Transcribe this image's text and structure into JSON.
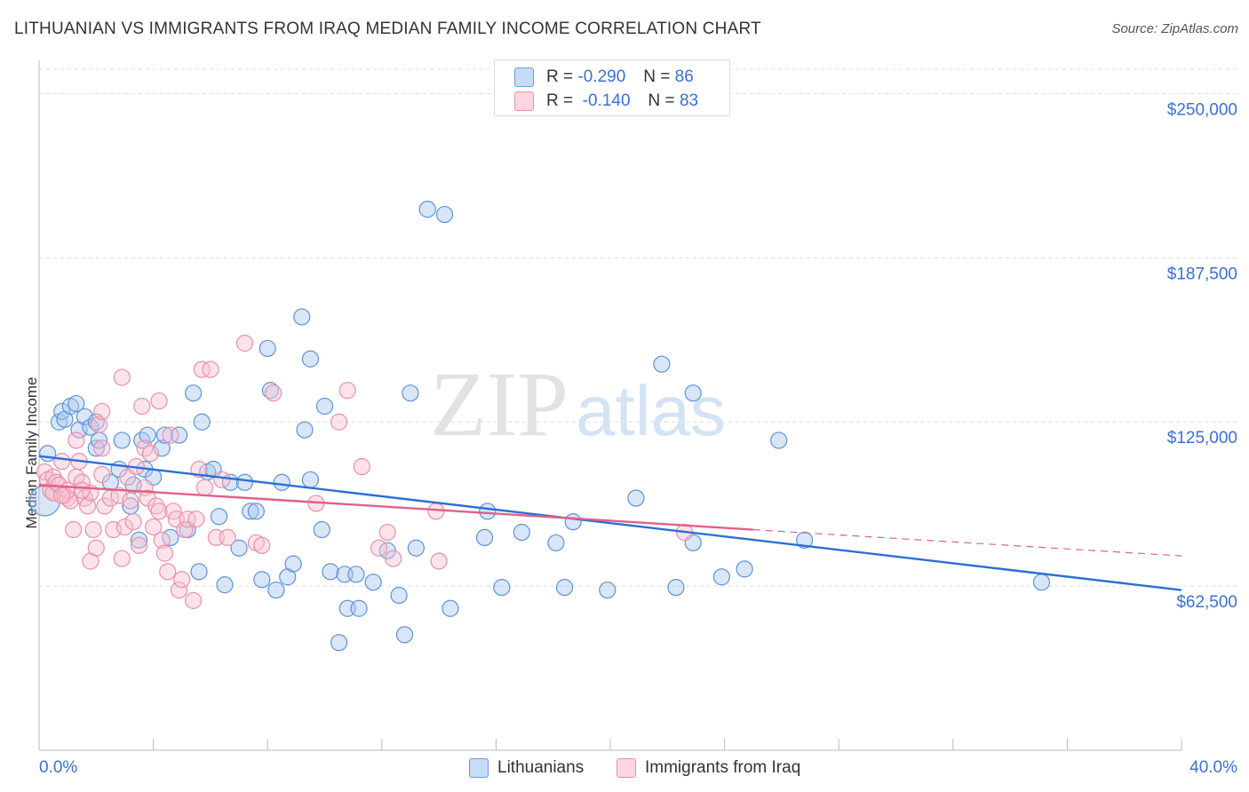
{
  "title": "LITHUANIAN VS IMMIGRANTS FROM IRAQ MEDIAN FAMILY INCOME CORRELATION CHART",
  "source": "Source: ZipAtlas.com",
  "watermark": {
    "zip": "ZIP",
    "atlas": "atlas"
  },
  "stats_legend": [
    {
      "r_label": "R =",
      "r_value": "-0.290",
      "n_label": "N =",
      "n_value": "86",
      "color": "#a8c8f0",
      "border": "#6a9ee0"
    },
    {
      "r_label": "R =",
      "r_value": "-0.140",
      "n_label": "N =",
      "n_value": "83",
      "color": "#f8c0d0",
      "border": "#e890aa"
    }
  ],
  "chart_data": {
    "type": "scatter",
    "title": "LITHUANIAN VS IMMIGRANTS FROM IRAQ MEDIAN FAMILY INCOME CORRELATION CHART",
    "xlabel": "",
    "ylabel": "Median Family Income",
    "xlim": [
      0,
      40
    ],
    "ylim": [
      0,
      262000
    ],
    "x_tick_labels": [
      "0.0%",
      "40.0%"
    ],
    "y_ticks": [
      62500,
      125000,
      187500,
      250000
    ],
    "y_tick_labels": [
      "$62,500",
      "$125,000",
      "$187,500",
      "$250,000"
    ],
    "grid": true,
    "legend_position": "bottom",
    "series": [
      {
        "name": "Lithuanians",
        "color": "#a8c8f0",
        "edge": "#5d92dc",
        "line_color": "#2b6fd6",
        "trend": {
          "x": [
            0,
            40
          ],
          "y": [
            112000,
            61000
          ]
        },
        "points": [
          [
            0.3,
            113000
          ],
          [
            0.7,
            125000
          ],
          [
            0.8,
            129000
          ],
          [
            0.9,
            126000
          ],
          [
            1.1,
            131000
          ],
          [
            1.3,
            132000
          ],
          [
            1.4,
            122000
          ],
          [
            1.6,
            127000
          ],
          [
            1.8,
            123000
          ],
          [
            2.0,
            125000
          ],
          [
            2.0,
            115000
          ],
          [
            2.1,
            118000
          ],
          [
            2.5,
            102000
          ],
          [
            2.8,
            107000
          ],
          [
            2.9,
            118000
          ],
          [
            3.2,
            93000
          ],
          [
            3.3,
            101000
          ],
          [
            3.5,
            80000
          ],
          [
            3.6,
            118000
          ],
          [
            3.7,
            107000
          ],
          [
            3.8,
            120000
          ],
          [
            4.0,
            104000
          ],
          [
            4.3,
            115000
          ],
          [
            4.4,
            120000
          ],
          [
            4.9,
            120000
          ],
          [
            4.6,
            81000
          ],
          [
            5.2,
            84000
          ],
          [
            5.4,
            136000
          ],
          [
            5.6,
            68000
          ],
          [
            5.7,
            125000
          ],
          [
            5.9,
            106000
          ],
          [
            6.1,
            107000
          ],
          [
            6.3,
            89000
          ],
          [
            6.5,
            63000
          ],
          [
            6.7,
            102000
          ],
          [
            7.0,
            77000
          ],
          [
            7.2,
            102000
          ],
          [
            7.4,
            91000
          ],
          [
            7.6,
            91000
          ],
          [
            7.8,
            65000
          ],
          [
            8.0,
            153000
          ],
          [
            8.1,
            137000
          ],
          [
            8.3,
            61000
          ],
          [
            8.5,
            102000
          ],
          [
            8.7,
            66000
          ],
          [
            8.9,
            71000
          ],
          [
            9.2,
            165000
          ],
          [
            9.3,
            122000
          ],
          [
            9.5,
            149000
          ],
          [
            9.5,
            103000
          ],
          [
            9.9,
            84000
          ],
          [
            10.0,
            131000
          ],
          [
            10.2,
            68000
          ],
          [
            10.5,
            41000
          ],
          [
            10.7,
            67000
          ],
          [
            10.8,
            54000
          ],
          [
            11.1,
            67000
          ],
          [
            11.2,
            54000
          ],
          [
            11.7,
            64000
          ],
          [
            12.2,
            76000
          ],
          [
            12.6,
            59000
          ],
          [
            12.8,
            44000
          ],
          [
            13.0,
            136000
          ],
          [
            13.2,
            77000
          ],
          [
            13.6,
            206000
          ],
          [
            14.2,
            204000
          ],
          [
            14.4,
            54000
          ],
          [
            15.7,
            91000
          ],
          [
            15.6,
            81000
          ],
          [
            16.2,
            62000
          ],
          [
            16.9,
            83000
          ],
          [
            18.1,
            79000
          ],
          [
            18.4,
            62000
          ],
          [
            18.7,
            87000
          ],
          [
            19.9,
            61000
          ],
          [
            20.9,
            96000
          ],
          [
            21.8,
            147000
          ],
          [
            22.3,
            62000
          ],
          [
            22.9,
            136000
          ],
          [
            22.9,
            79000
          ],
          [
            23.9,
            66000
          ],
          [
            24.7,
            69000
          ],
          [
            25.9,
            118000
          ],
          [
            26.8,
            80000
          ],
          [
            35.1,
            64000
          ],
          [
            0.2,
            95000
          ]
        ],
        "radii_note": "leftmost point at x=0.2 drawn larger"
      },
      {
        "name": "Immigrants from Iraq",
        "color": "#f8c0d0",
        "edge": "#e890aa",
        "line_color": "#e0608a",
        "trend": {
          "x": [
            0,
            25
          ],
          "y": [
            101000,
            84000
          ]
        },
        "trend_dashed": {
          "x": [
            25,
            40
          ],
          "y": [
            84000,
            74000
          ]
        },
        "points": [
          [
            0.2,
            106000
          ],
          [
            0.3,
            103000
          ],
          [
            0.4,
            99000
          ],
          [
            0.5,
            104000
          ],
          [
            0.5,
            98000
          ],
          [
            0.6,
            102000
          ],
          [
            0.7,
            101000
          ],
          [
            0.8,
            110000
          ],
          [
            0.9,
            97000
          ],
          [
            1.0,
            96000
          ],
          [
            1.1,
            95000
          ],
          [
            1.2,
            84000
          ],
          [
            1.3,
            104000
          ],
          [
            1.3,
            118000
          ],
          [
            1.4,
            110000
          ],
          [
            1.5,
            102000
          ],
          [
            1.6,
            96000
          ],
          [
            1.7,
            93000
          ],
          [
            1.8,
            72000
          ],
          [
            1.8,
            98000
          ],
          [
            1.9,
            84000
          ],
          [
            2.0,
            77000
          ],
          [
            2.1,
            124000
          ],
          [
            2.2,
            129000
          ],
          [
            2.2,
            115000
          ],
          [
            2.2,
            105000
          ],
          [
            2.3,
            93000
          ],
          [
            2.5,
            96000
          ],
          [
            2.6,
            84000
          ],
          [
            2.8,
            97000
          ],
          [
            2.9,
            73000
          ],
          [
            2.9,
            142000
          ],
          [
            3.0,
            85000
          ],
          [
            3.1,
            104000
          ],
          [
            3.2,
            95000
          ],
          [
            3.3,
            87000
          ],
          [
            3.4,
            108000
          ],
          [
            3.5,
            78000
          ],
          [
            3.6,
            131000
          ],
          [
            3.7,
            100000
          ],
          [
            3.7,
            115000
          ],
          [
            3.8,
            96000
          ],
          [
            3.9,
            113000
          ],
          [
            4.0,
            85000
          ],
          [
            4.1,
            93000
          ],
          [
            4.2,
            91000
          ],
          [
            4.2,
            133000
          ],
          [
            4.3,
            80000
          ],
          [
            4.4,
            75000
          ],
          [
            4.5,
            68000
          ],
          [
            4.6,
            120000
          ],
          [
            4.7,
            91000
          ],
          [
            4.8,
            88000
          ],
          [
            4.9,
            61000
          ],
          [
            5.0,
            65000
          ],
          [
            5.1,
            84000
          ],
          [
            5.2,
            88000
          ],
          [
            5.4,
            57000
          ],
          [
            5.5,
            88000
          ],
          [
            5.6,
            107000
          ],
          [
            5.7,
            145000
          ],
          [
            5.8,
            100000
          ],
          [
            6.0,
            145000
          ],
          [
            6.2,
            81000
          ],
          [
            6.4,
            103000
          ],
          [
            6.6,
            81000
          ],
          [
            7.2,
            155000
          ],
          [
            7.6,
            79000
          ],
          [
            7.8,
            78000
          ],
          [
            8.2,
            136000
          ],
          [
            9.7,
            94000
          ],
          [
            10.5,
            125000
          ],
          [
            10.8,
            137000
          ],
          [
            11.3,
            108000
          ],
          [
            11.9,
            77000
          ],
          [
            12.2,
            83000
          ],
          [
            12.4,
            73000
          ],
          [
            13.9,
            91000
          ],
          [
            14.0,
            72000
          ],
          [
            22.6,
            83000
          ],
          [
            1.0,
            99000
          ],
          [
            0.8,
            97000
          ],
          [
            1.5,
            99000
          ]
        ]
      }
    ]
  },
  "bottom_legend": [
    {
      "label": "Lithuanians",
      "color": "#a8c8f0",
      "border": "#6a9ee0"
    },
    {
      "label": "Immigrants from Iraq",
      "color": "#f8c0d0",
      "border": "#e890aa"
    }
  ]
}
